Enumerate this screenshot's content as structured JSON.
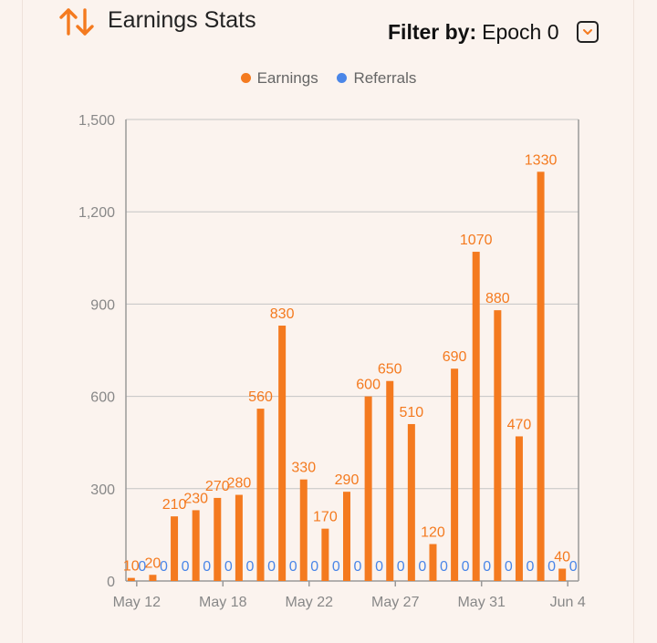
{
  "header": {
    "title": "Earnings Stats",
    "icon": "sort-arrows-icon",
    "filter_label": "Filter by:",
    "filter_value": "Epoch 0",
    "dropdown_icon": "chevron-down-icon"
  },
  "colors": {
    "earnings": "#f47a1f",
    "referrals": "#4a86e8",
    "accent": "#f47a1f",
    "background": "#fbf3ee"
  },
  "chart_data": {
    "type": "bar",
    "title": "",
    "xlabel": "",
    "ylabel": "",
    "ylim": [
      0,
      1500
    ],
    "yticks": [
      "0",
      "300",
      "600",
      "900",
      "1,200",
      "1,500"
    ],
    "xticks": [
      "May 12",
      "May 18",
      "May 22",
      "May 27",
      "May 31",
      "Jun 4"
    ],
    "grid": true,
    "legend_position": "top-center",
    "series": [
      {
        "name": "Earnings",
        "values": [
          10,
          20,
          210,
          230,
          270,
          280,
          560,
          830,
          330,
          170,
          290,
          600,
          650,
          510,
          120,
          690,
          1070,
          880,
          470,
          1330,
          40
        ],
        "labels": [
          "10",
          "20",
          "210",
          "230",
          "270",
          "280",
          "560",
          "830",
          "330",
          "170",
          "290",
          "600",
          "650",
          "510",
          "120",
          "690",
          "1070",
          "880",
          "470",
          "1330",
          "40"
        ]
      },
      {
        "name": "Referrals",
        "values": [
          0,
          0,
          0,
          0,
          0,
          0,
          0,
          0,
          0,
          0,
          0,
          0,
          0,
          0,
          0,
          0,
          0,
          0,
          0,
          0,
          0
        ],
        "labels": [
          "0",
          "0",
          "0",
          "0",
          "0",
          "0",
          "0",
          "0",
          "0",
          "0",
          "0",
          "0",
          "0",
          "0",
          "0",
          "0",
          "0",
          "0",
          "0",
          "0",
          "0"
        ]
      }
    ]
  }
}
